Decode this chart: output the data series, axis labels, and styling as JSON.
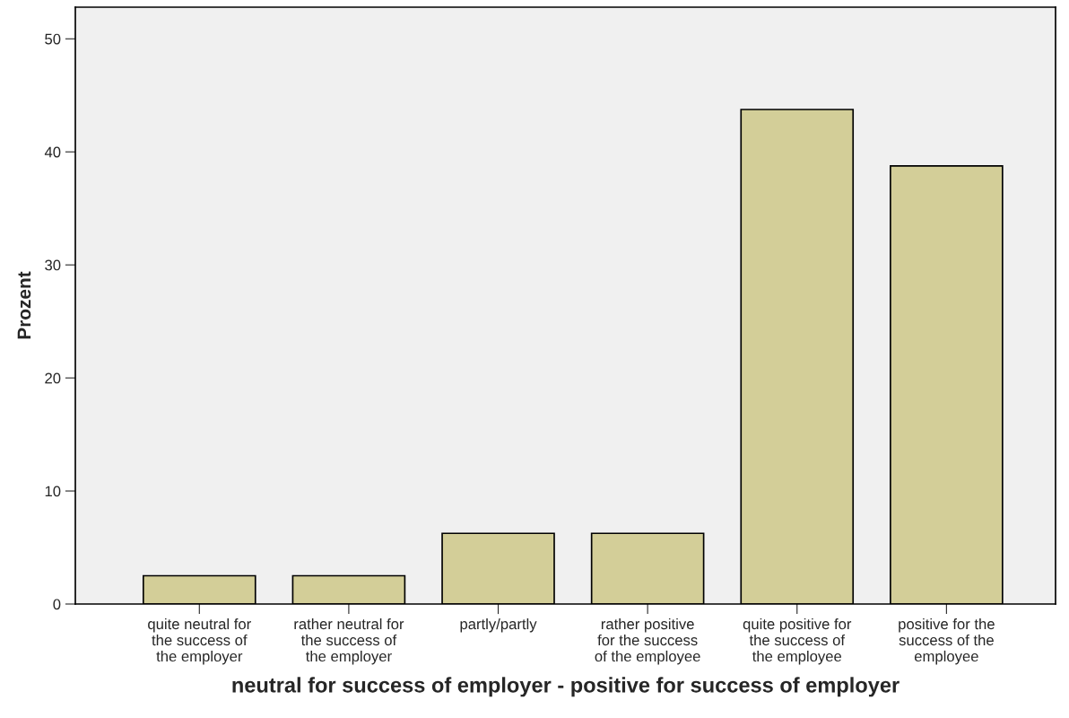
{
  "chart_data": {
    "type": "bar",
    "xlabel": "neutral for success of employer - positive for success of employer",
    "ylabel": "Prozent",
    "categories": [
      "quite neutral for\nthe success of\nthe employer",
      "rather neutral for\nthe success of\nthe employer",
      "partly/partly",
      "rather positive\nfor the success\nof the employee",
      "quite positive for\nthe success of\nthe employee",
      "positive for the\nsuccess of the\nemployee"
    ],
    "values": [
      2.5,
      2.5,
      6.25,
      6.25,
      43.75,
      38.75
    ],
    "color": "#d3ce98",
    "ylim": [
      0,
      52.8
    ],
    "yticks": [
      0,
      10,
      20,
      30,
      40,
      50
    ],
    "grid": false,
    "legend": false
  }
}
